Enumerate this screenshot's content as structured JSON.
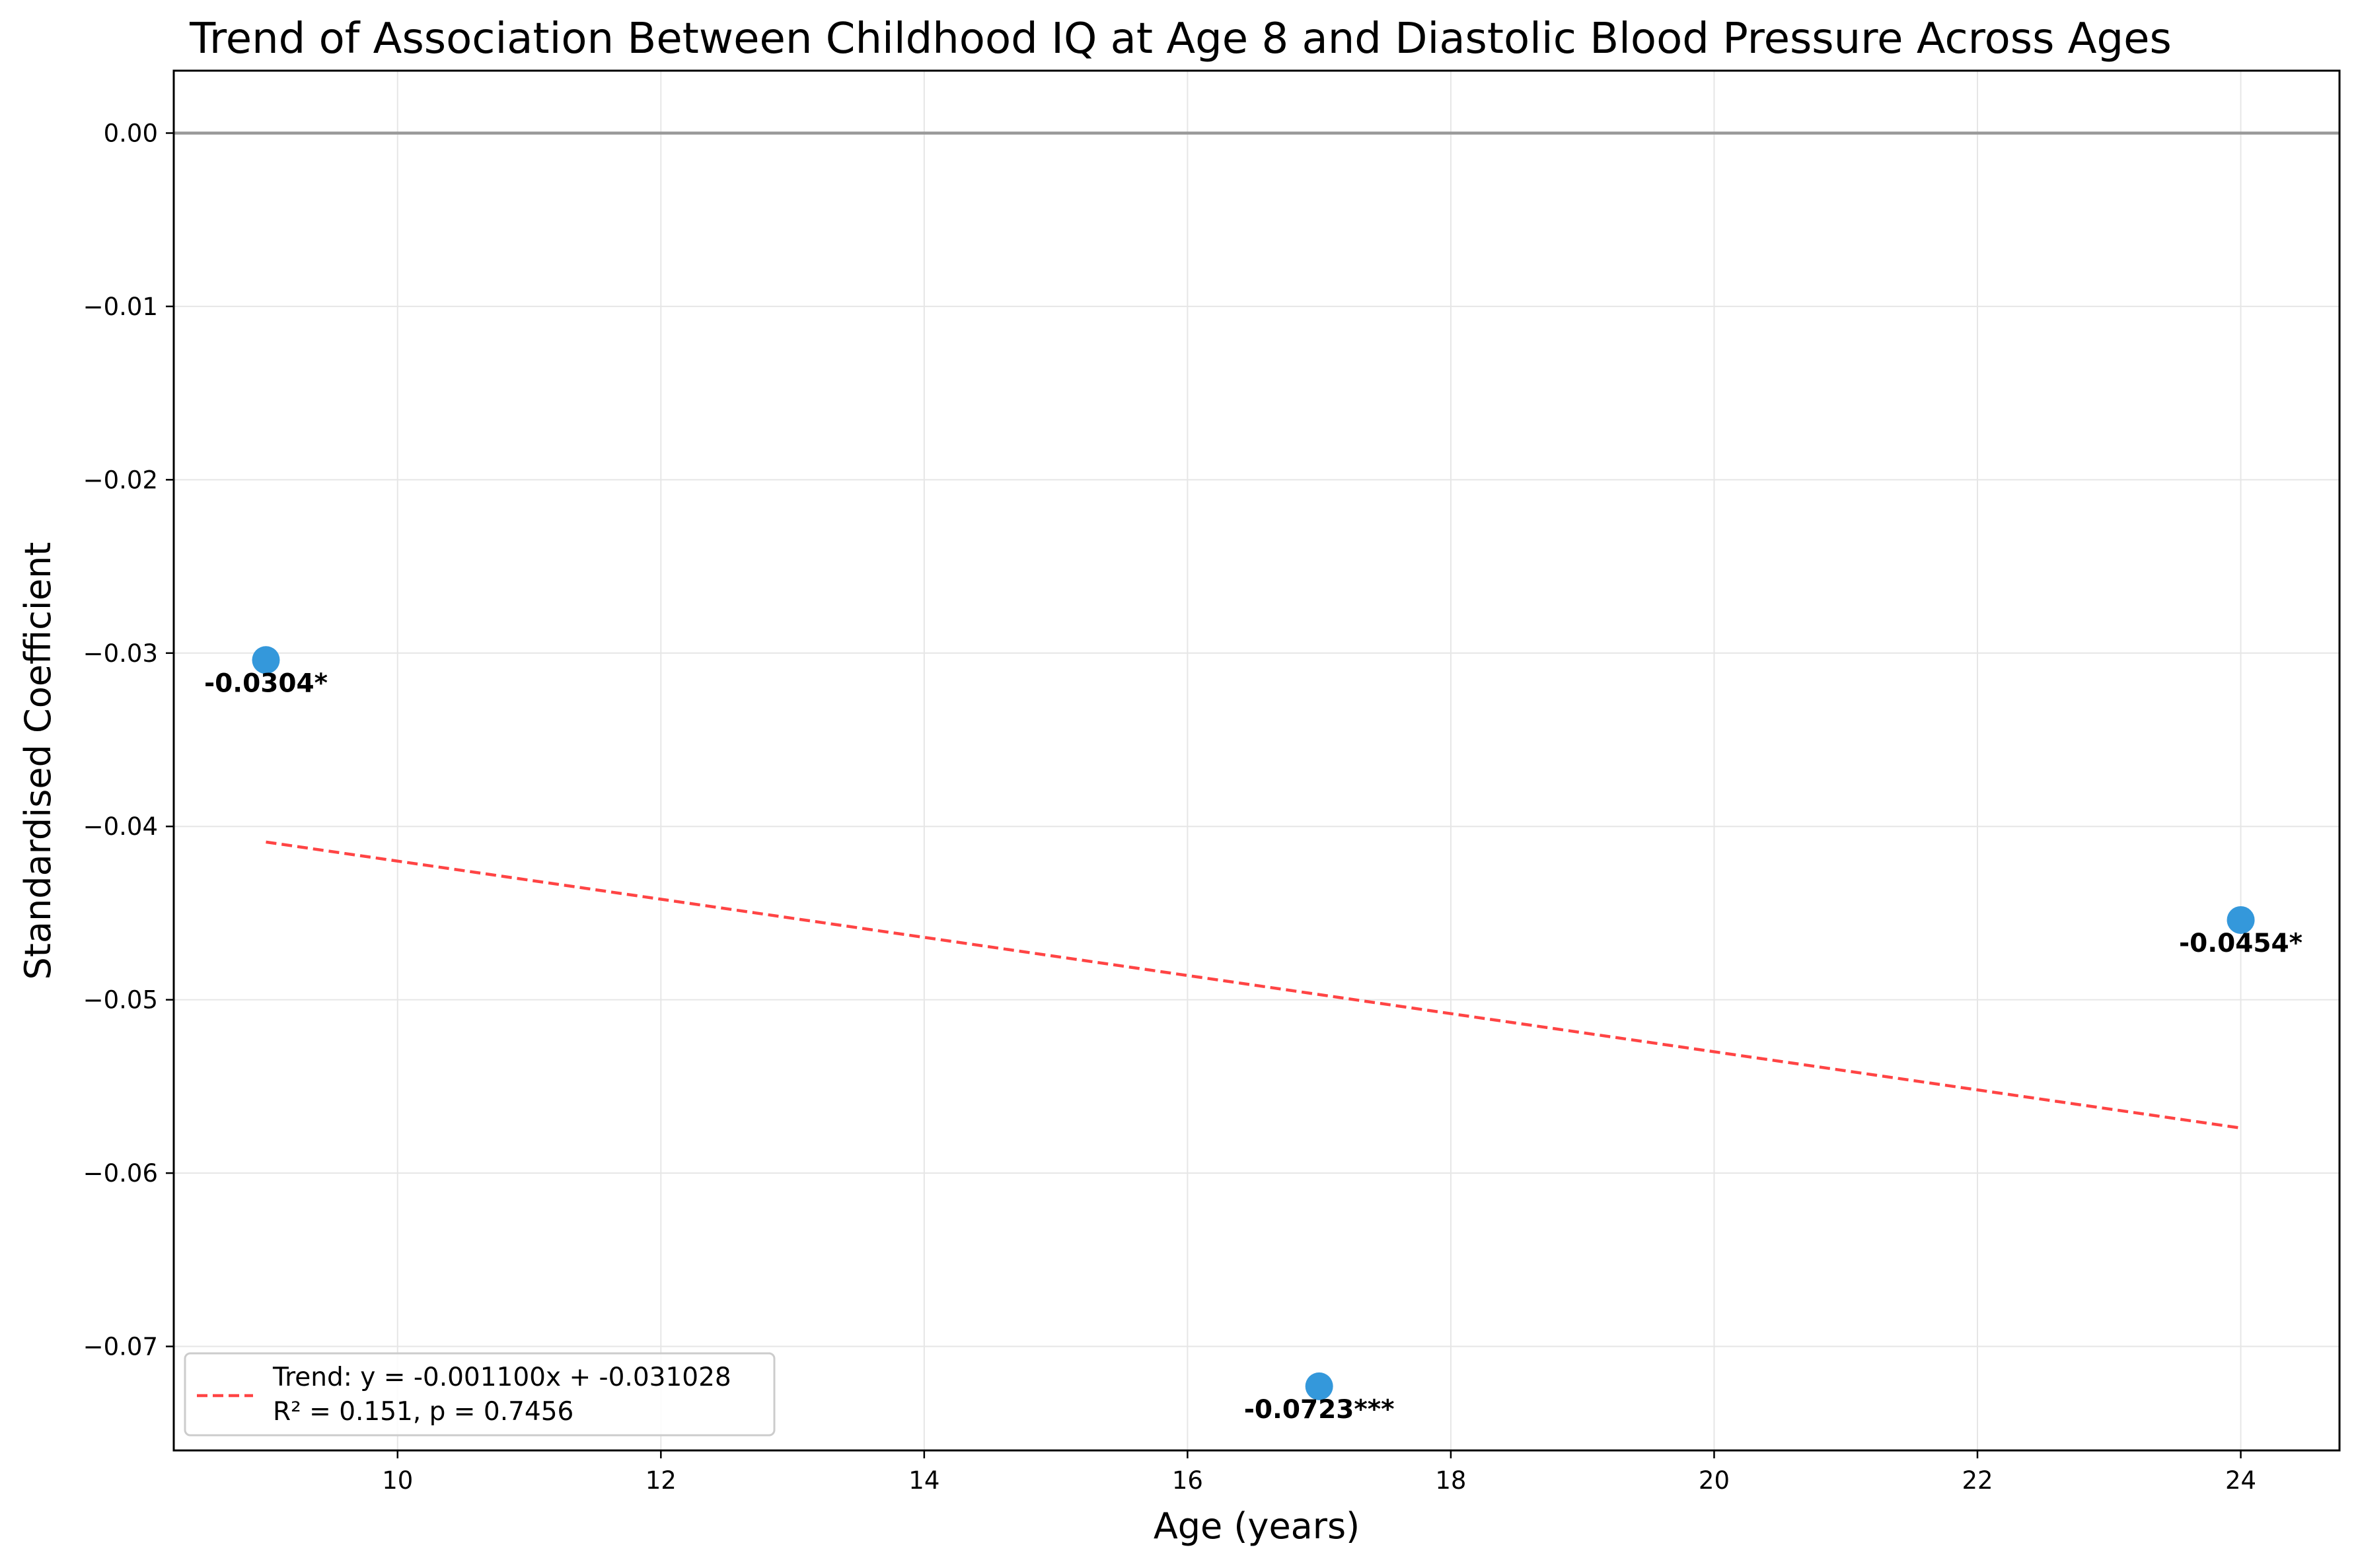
{
  "chart_data": {
    "type": "scatter",
    "title": "Trend of Association Between Childhood IQ at Age 8 and Diastolic Blood Pressure Across Ages",
    "xlabel": "Age (years)",
    "ylabel": "Standardised Coefficient",
    "xlim": [
      8.3,
      24.75
    ],
    "ylim": [
      -0.076,
      0.0036
    ],
    "x_ticks": [
      10,
      12,
      14,
      16,
      18,
      20,
      22,
      24
    ],
    "x_tick_labels": [
      "10",
      "12",
      "14",
      "16",
      "18",
      "20",
      "22",
      "24"
    ],
    "y_ticks": [
      0.0,
      -0.01,
      -0.02,
      -0.03,
      -0.04,
      -0.05,
      -0.06,
      -0.07
    ],
    "y_tick_labels": [
      "0.00",
      "−0.01",
      "−0.02",
      "−0.03",
      "−0.04",
      "−0.05",
      "−0.06",
      "−0.07"
    ],
    "grid": true,
    "reference_line_y": 0.0,
    "points": [
      {
        "x": 9,
        "y": -0.0304,
        "label": "-0.0304*"
      },
      {
        "x": 17,
        "y": -0.0723,
        "label": "-0.0723***"
      },
      {
        "x": 24,
        "y": -0.0454,
        "label": "-0.0454*"
      }
    ],
    "trend": {
      "slope": -0.0011,
      "intercept": -0.031028,
      "x_range": [
        9,
        24
      ],
      "label_line1": "Trend: y = -0.001100x + -0.031028",
      "label_line2": "R² = 0.151, p = 0.7456"
    },
    "legend": {
      "placement": "lower-left"
    },
    "colors": {
      "point": "#3498db",
      "trend": "#ff4444",
      "reference": "#999999",
      "grid": "#e6e6e6",
      "axes": "#000000"
    }
  }
}
